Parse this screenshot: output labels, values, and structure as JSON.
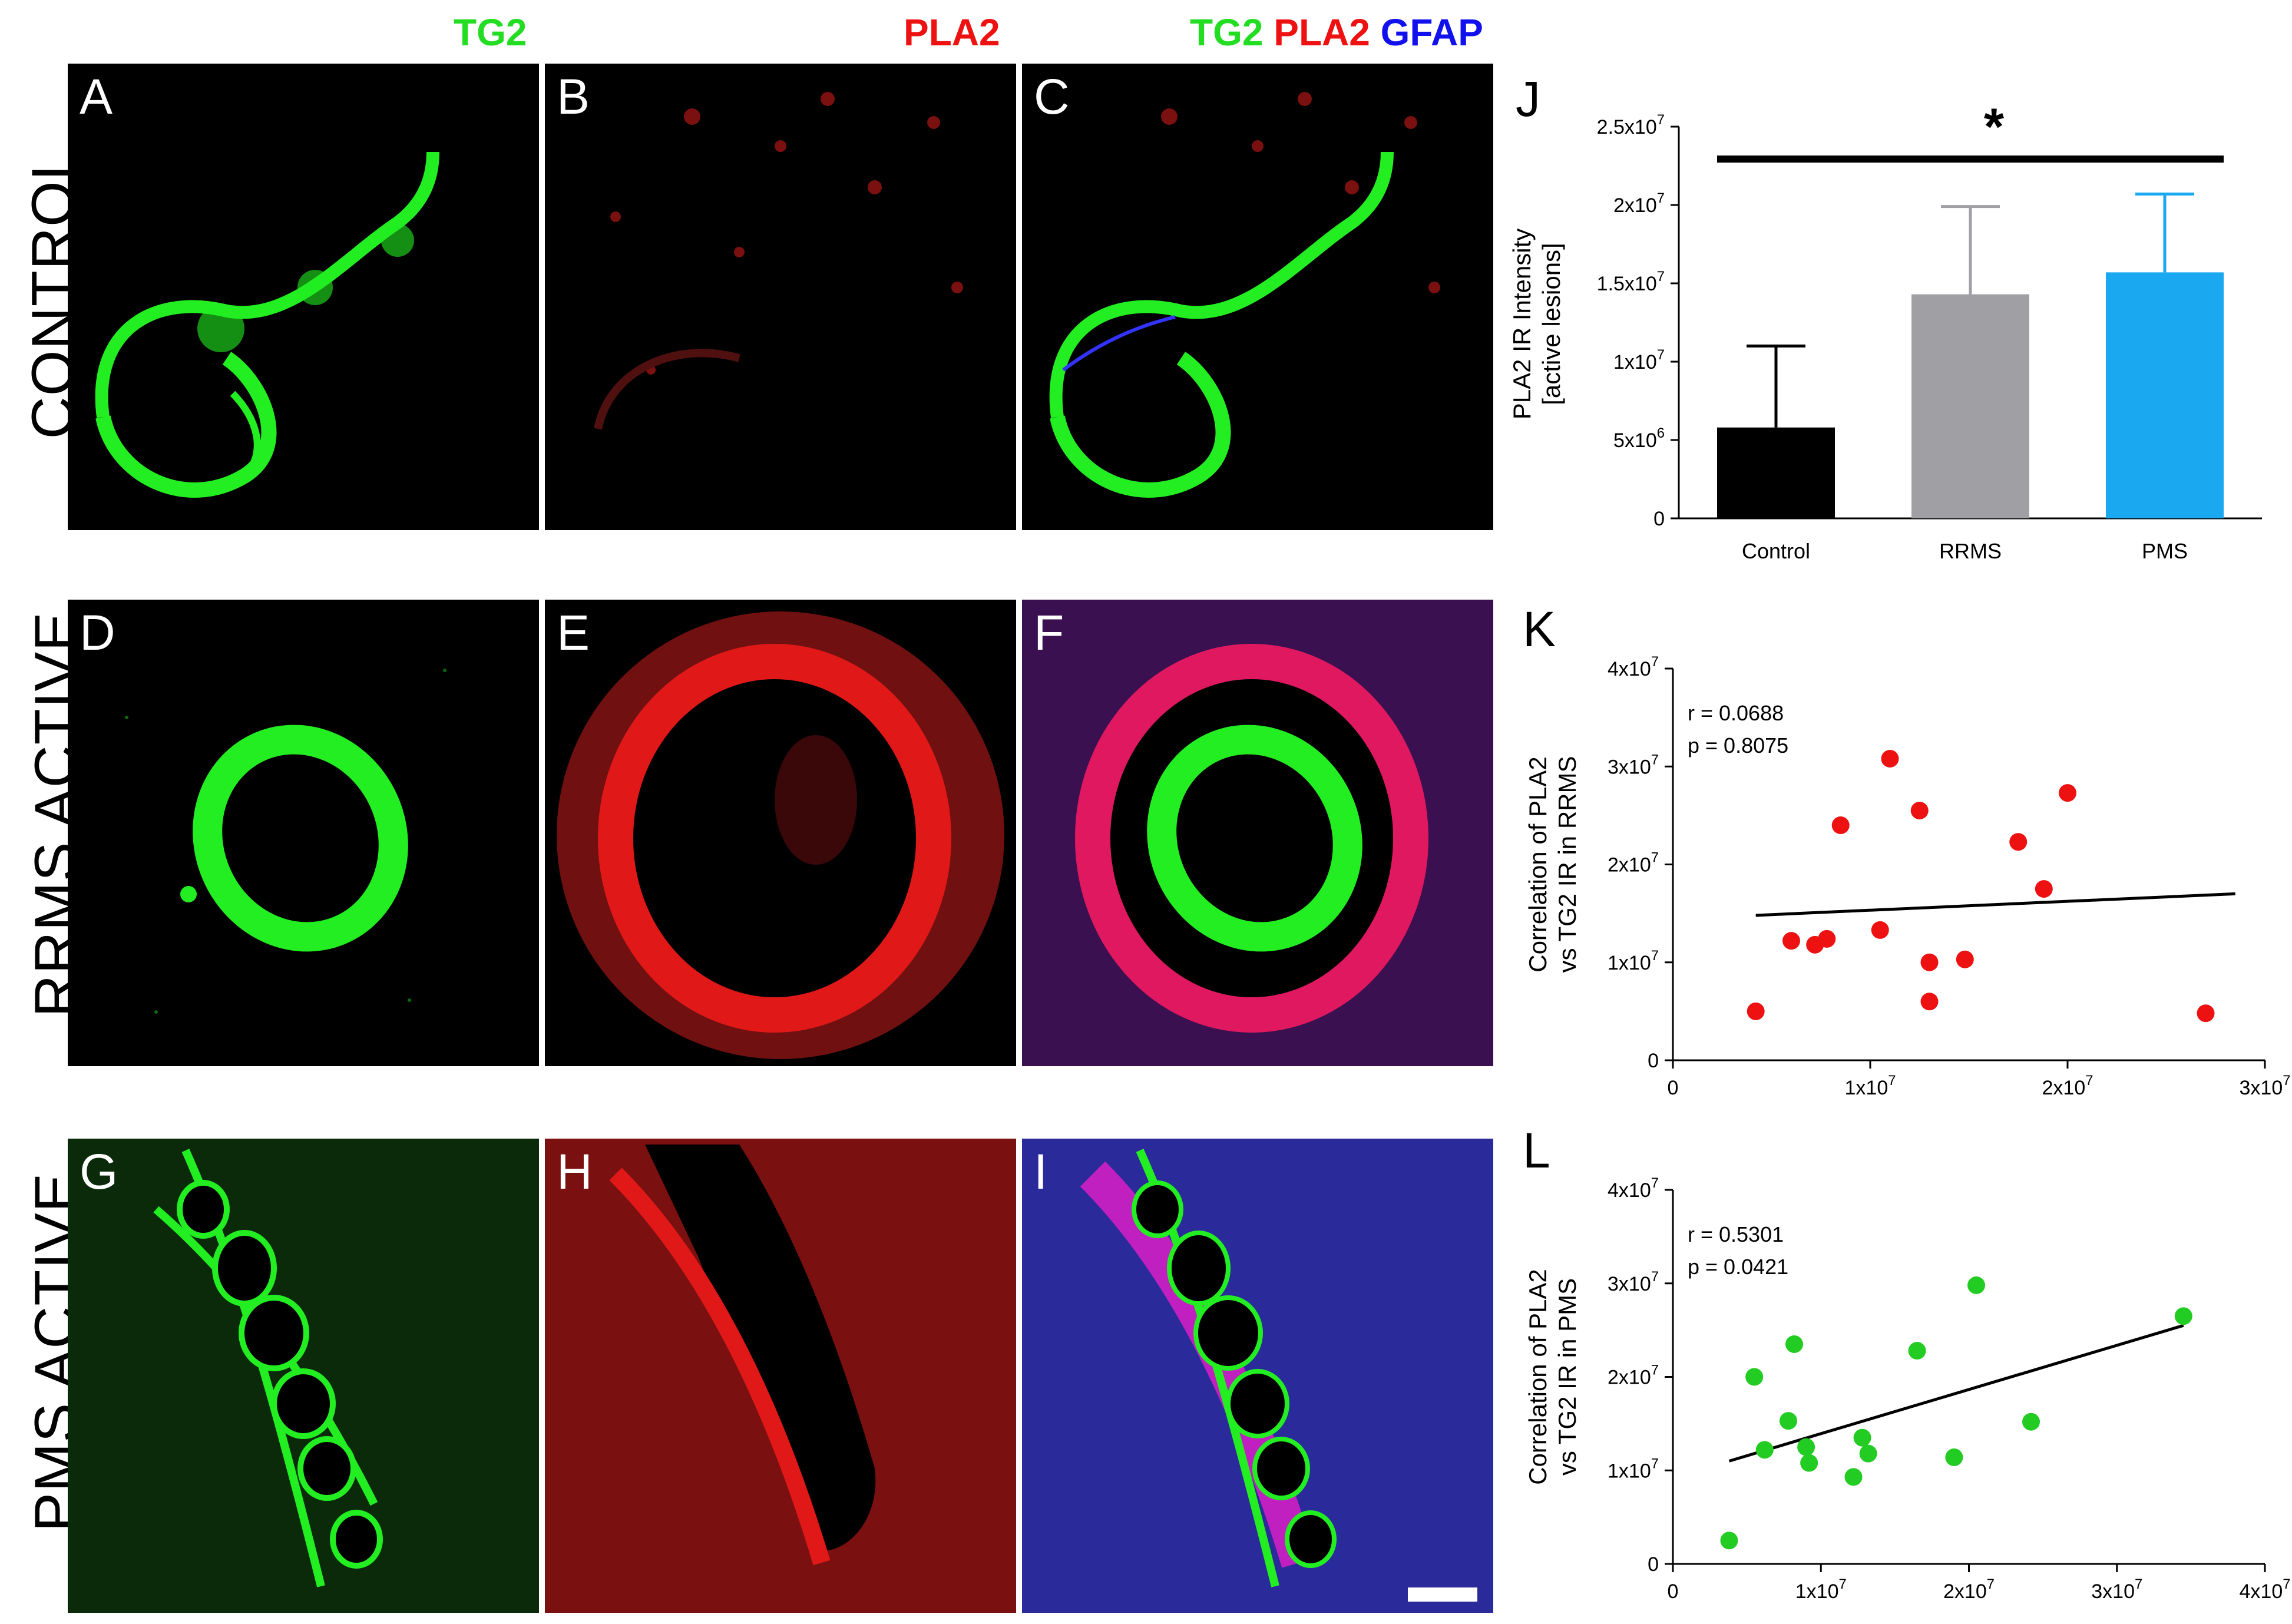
{
  "headers": {
    "col1": {
      "text": "TG2",
      "color": "#22dd22"
    },
    "col2": {
      "text": "PLA2",
      "color": "#ee1111"
    },
    "col3": [
      {
        "text": "TG2",
        "color": "#22dd22"
      },
      {
        "text": "PLA2",
        "color": "#ee1111"
      },
      {
        "text": "GFAP",
        "color": "#1111ee"
      }
    ]
  },
  "rows": [
    "CONTROL",
    "RRMS ACTIVE",
    "PMS ACTIVE"
  ],
  "panels": [
    "A",
    "B",
    "C",
    "D",
    "E",
    "F",
    "G",
    "H",
    "I"
  ],
  "colors": {
    "green": "#22ee22",
    "red": "#e01818",
    "blue": "#2a2aff",
    "bar_control": "#000000",
    "bar_rrms": "#a0a0a4",
    "bar_pms": "#1aa8f0",
    "dot_rrms": "#ee1111",
    "dot_pms": "#22cc22"
  },
  "chart_data": [
    {
      "id": "J",
      "type": "bar",
      "panel_label": "J",
      "categories": [
        "Control",
        "RRMS",
        "PMS"
      ],
      "values": [
        5800000,
        14300000,
        15700000
      ],
      "errors": [
        5200000,
        5600000,
        5000000
      ],
      "ylabel": "PLA2 IR Intensity",
      "ylabel2": "[active lesions]",
      "ylim": [
        0,
        25000000
      ],
      "yticks": [
        {
          "v": 0,
          "base": "0",
          "exp": ""
        },
        {
          "v": 5000000,
          "base": "5x10",
          "exp": "6"
        },
        {
          "v": 10000000,
          "base": "1x10",
          "exp": "7"
        },
        {
          "v": 15000000,
          "base": "1.5x10",
          "exp": "7"
        },
        {
          "v": 20000000,
          "base": "2x10",
          "exp": "7"
        },
        {
          "v": 25000000,
          "base": "2.5x10",
          "exp": "7"
        }
      ],
      "significance": {
        "from": "Control",
        "to": "PMS",
        "label": "*"
      }
    },
    {
      "id": "K",
      "type": "scatter",
      "panel_label": "K",
      "ylabel": "Correlation of PLA2",
      "ylabel2": "vs TG2 IR in RRMS",
      "xlim": [
        0,
        30000000
      ],
      "ylim": [
        0,
        40000000
      ],
      "xticks": [
        {
          "v": 0,
          "base": "0",
          "exp": ""
        },
        {
          "v": 10000000,
          "base": "1x10",
          "exp": "7"
        },
        {
          "v": 20000000,
          "base": "2x10",
          "exp": "7"
        },
        {
          "v": 30000000,
          "base": "3x10",
          "exp": "7"
        }
      ],
      "yticks": [
        {
          "v": 0,
          "base": "0",
          "exp": ""
        },
        {
          "v": 10000000,
          "base": "1x10",
          "exp": "7"
        },
        {
          "v": 20000000,
          "base": "2x10",
          "exp": "7"
        },
        {
          "v": 30000000,
          "base": "3x10",
          "exp": "7"
        },
        {
          "v": 40000000,
          "base": "4x10",
          "exp": "7"
        }
      ],
      "stats": [
        "r = 0.0688",
        "p = 0.8075"
      ],
      "points": [
        [
          4200000,
          5000000
        ],
        [
          6000000,
          12200000
        ],
        [
          7200000,
          11800000
        ],
        [
          7800000,
          12400000
        ],
        [
          8500000,
          24000000
        ],
        [
          10500000,
          13300000
        ],
        [
          11000000,
          30800000
        ],
        [
          12500000,
          25500000
        ],
        [
          13000000,
          6000000
        ],
        [
          13000000,
          10000000
        ],
        [
          14800000,
          10300000
        ],
        [
          17500000,
          22300000
        ],
        [
          18800000,
          17500000
        ],
        [
          20000000,
          27300000
        ],
        [
          27000000,
          4800000
        ]
      ],
      "fit": [
        [
          4200000,
          14800000
        ],
        [
          28500000,
          17000000
        ]
      ]
    },
    {
      "id": "L",
      "type": "scatter",
      "panel_label": "L",
      "ylabel": "Correlation of PLA2",
      "ylabel2": "vs TG2 IR in PMS",
      "xlim": [
        0,
        40000000
      ],
      "ylim": [
        0,
        40000000
      ],
      "xticks": [
        {
          "v": 0,
          "base": "0",
          "exp": ""
        },
        {
          "v": 10000000,
          "base": "1x10",
          "exp": "7"
        },
        {
          "v": 20000000,
          "base": "2x10",
          "exp": "7"
        },
        {
          "v": 30000000,
          "base": "3x10",
          "exp": "7"
        },
        {
          "v": 40000000,
          "base": "4x10",
          "exp": "7"
        }
      ],
      "yticks": [
        {
          "v": 0,
          "base": "0",
          "exp": ""
        },
        {
          "v": 10000000,
          "base": "1x10",
          "exp": "7"
        },
        {
          "v": 20000000,
          "base": "2x10",
          "exp": "7"
        },
        {
          "v": 30000000,
          "base": "3x10",
          "exp": "7"
        },
        {
          "v": 40000000,
          "base": "4x10",
          "exp": "7"
        }
      ],
      "stats": [
        "r = 0.5301",
        "p = 0.0421"
      ],
      "points": [
        [
          3800000,
          2500000
        ],
        [
          5500000,
          20000000
        ],
        [
          6200000,
          12200000
        ],
        [
          7800000,
          15300000
        ],
        [
          8200000,
          23500000
        ],
        [
          9000000,
          12500000
        ],
        [
          9200000,
          10800000
        ],
        [
          12200000,
          9300000
        ],
        [
          12800000,
          13500000
        ],
        [
          13200000,
          11800000
        ],
        [
          16500000,
          22800000
        ],
        [
          19000000,
          11400000
        ],
        [
          20500000,
          29800000
        ],
        [
          24200000,
          15200000
        ],
        [
          34500000,
          26500000
        ]
      ],
      "fit": [
        [
          3800000,
          11000000
        ],
        [
          34500000,
          25500000
        ]
      ]
    }
  ]
}
